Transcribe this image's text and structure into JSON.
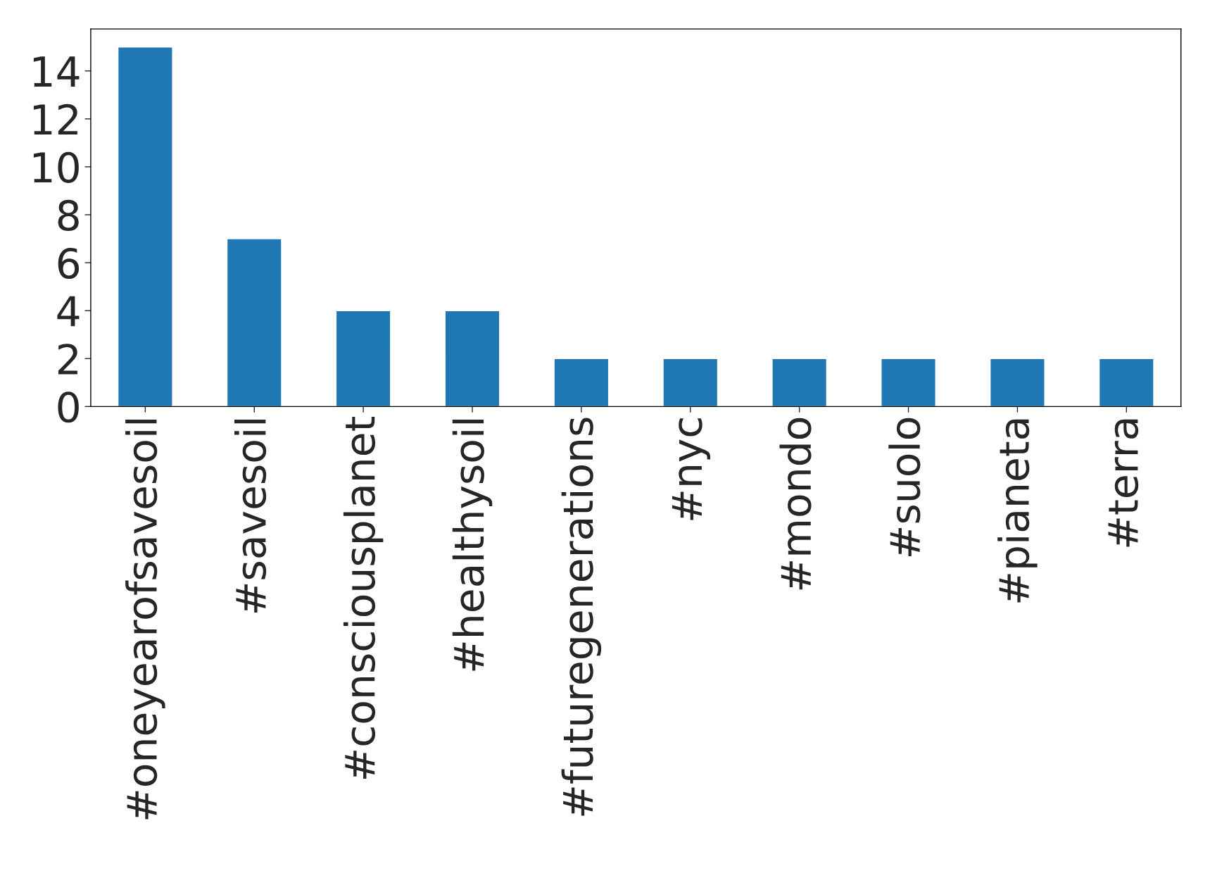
{
  "chart_data": {
    "type": "bar",
    "categories": [
      "#oneyearofsavesoil",
      "#savesoil",
      "#consciousplanet",
      "#healthysoil",
      "#futuregenerations",
      "#nyc",
      "#mondo",
      "#suolo",
      "#pianeta",
      "#terra"
    ],
    "values": [
      15,
      7,
      4,
      4,
      2,
      2,
      2,
      2,
      2,
      2
    ],
    "color": "#1f77b4",
    "ylim": [
      0,
      15.75
    ],
    "yticks": [
      0,
      2,
      4,
      6,
      8,
      10,
      12,
      14
    ],
    "grid": false,
    "legend": false
  }
}
